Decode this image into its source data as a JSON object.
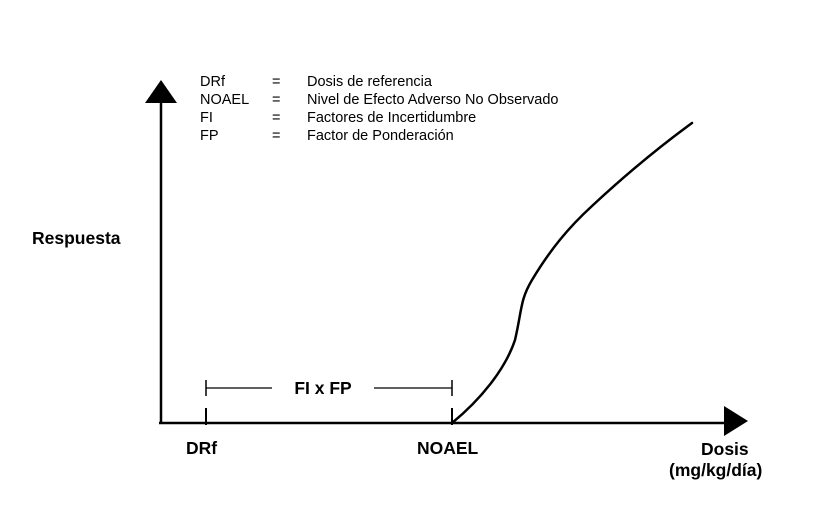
{
  "legend": [
    {
      "abbr": "DRf",
      "eq": "=",
      "desc": "Dosis de referencia"
    },
    {
      "abbr": "NOAEL",
      "eq": "=",
      "desc": "Nivel de Efecto Adverso No Observado"
    },
    {
      "abbr": "FI",
      "eq": "=",
      "desc": "Factores de Incertidumbre"
    },
    {
      "abbr": "FP",
      "eq": "=",
      "desc": "Factor de Ponderación"
    }
  ],
  "axes": {
    "y_label": "Respuesta",
    "x_label_line1": "Dosis",
    "x_label_line2": "(mg/kg/día)"
  },
  "markers": {
    "drf": "DRf",
    "noael": "NOAEL"
  },
  "range_label": "FI x FP",
  "colors": {
    "ink": "#000000",
    "background": "#ffffff"
  }
}
